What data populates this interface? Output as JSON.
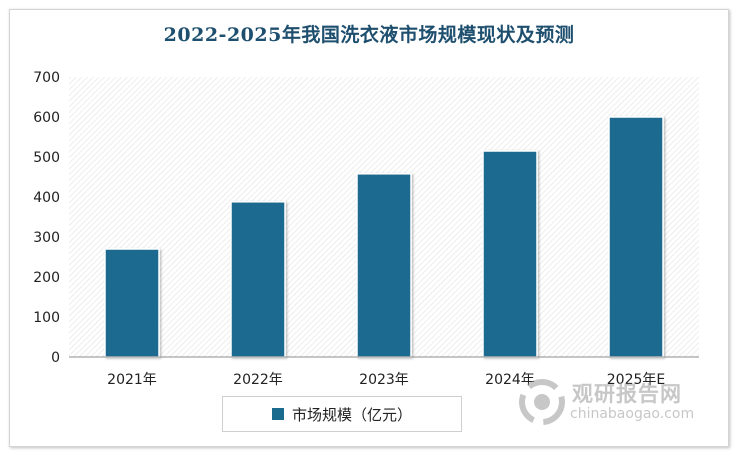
{
  "chart_data": {
    "type": "bar",
    "title": "2022-2025年我国洗衣液市场规模现状及预测",
    "categories": [
      "2021年",
      "2022年",
      "2023年",
      "2024年",
      "2025年E"
    ],
    "series": [
      {
        "name": "市场规模（亿元）",
        "values": [
          270,
          388,
          458,
          515,
          600
        ],
        "color": "#1b6b8f"
      }
    ],
    "ylim": [
      0,
      700
    ],
    "yticks": [
      0,
      100,
      200,
      300,
      400,
      500,
      600,
      700
    ],
    "grid": false,
    "legend_position": "bottom"
  },
  "watermark": {
    "name": "观研报告网",
    "url": "chinabaogao.com"
  }
}
